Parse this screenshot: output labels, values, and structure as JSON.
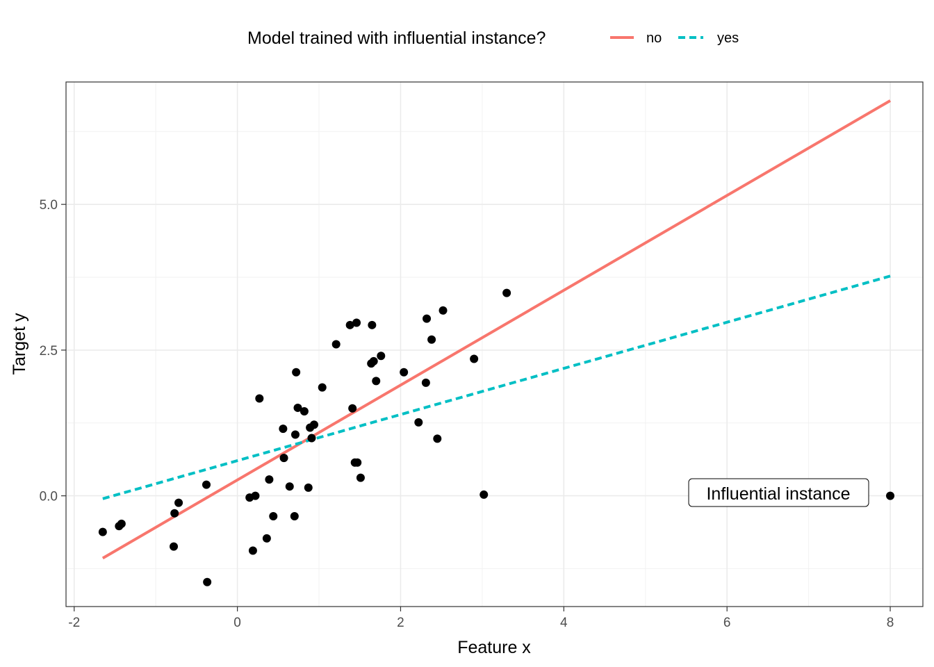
{
  "chart_data": {
    "type": "scatter",
    "xlabel": "Feature x",
    "ylabel": "Target y",
    "xlim": [
      -2.1,
      8.4
    ],
    "ylim": [
      -1.9,
      7.1
    ],
    "x_ticks": [
      -2,
      0,
      2,
      4,
      6,
      8
    ],
    "x_tick_labels": [
      "-2",
      "0",
      "2",
      "4",
      "6",
      "8"
    ],
    "y_ticks": [
      0,
      2.5,
      5
    ],
    "y_tick_labels": [
      "0.0",
      "2.5",
      "5.0"
    ],
    "grid": true,
    "legend": {
      "title": "Model trained with influential instance?",
      "position": "top",
      "entries": [
        {
          "label": "no",
          "color": "#F8766D",
          "dash": "solid"
        },
        {
          "label": "yes",
          "color": "#00BFC4",
          "dash": "dashed"
        }
      ]
    },
    "points": [
      {
        "x": -1.65,
        "y": -0.62
      },
      {
        "x": -1.45,
        "y": -0.52
      },
      {
        "x": -1.42,
        "y": -0.48
      },
      {
        "x": -0.78,
        "y": -0.87
      },
      {
        "x": -0.77,
        "y": -0.3
      },
      {
        "x": -0.72,
        "y": -0.12
      },
      {
        "x": -0.38,
        "y": 0.19
      },
      {
        "x": -0.37,
        "y": -1.48
      },
      {
        "x": 0.15,
        "y": -0.03
      },
      {
        "x": 0.19,
        "y": -0.94
      },
      {
        "x": 0.22,
        "y": 0.0
      },
      {
        "x": 0.27,
        "y": 1.67
      },
      {
        "x": 0.36,
        "y": -0.73
      },
      {
        "x": 0.39,
        "y": 0.28
      },
      {
        "x": 0.44,
        "y": -0.35
      },
      {
        "x": 0.56,
        "y": 1.15
      },
      {
        "x": 0.57,
        "y": 0.65
      },
      {
        "x": 0.64,
        "y": 0.16
      },
      {
        "x": 0.7,
        "y": -0.35
      },
      {
        "x": 0.71,
        "y": 1.05
      },
      {
        "x": 0.72,
        "y": 2.12
      },
      {
        "x": 0.74,
        "y": 1.51
      },
      {
        "x": 0.82,
        "y": 1.45
      },
      {
        "x": 0.87,
        "y": 0.14
      },
      {
        "x": 0.89,
        "y": 1.17
      },
      {
        "x": 0.91,
        "y": 0.99
      },
      {
        "x": 0.94,
        "y": 1.22
      },
      {
        "x": 1.04,
        "y": 1.86
      },
      {
        "x": 1.21,
        "y": 2.6
      },
      {
        "x": 1.38,
        "y": 2.93
      },
      {
        "x": 1.41,
        "y": 1.5
      },
      {
        "x": 1.44,
        "y": 0.57
      },
      {
        "x": 1.46,
        "y": 2.97
      },
      {
        "x": 1.47,
        "y": 0.57
      },
      {
        "x": 1.51,
        "y": 0.31
      },
      {
        "x": 1.64,
        "y": 2.27
      },
      {
        "x": 1.65,
        "y": 2.93
      },
      {
        "x": 1.67,
        "y": 2.31
      },
      {
        "x": 1.7,
        "y": 1.97
      },
      {
        "x": 1.76,
        "y": 2.4
      },
      {
        "x": 2.04,
        "y": 2.12
      },
      {
        "x": 2.22,
        "y": 1.26
      },
      {
        "x": 2.31,
        "y": 1.94
      },
      {
        "x": 2.32,
        "y": 3.04
      },
      {
        "x": 2.38,
        "y": 2.68
      },
      {
        "x": 2.45,
        "y": 0.98
      },
      {
        "x": 2.52,
        "y": 3.18
      },
      {
        "x": 2.9,
        "y": 2.35
      },
      {
        "x": 3.02,
        "y": 0.02
      },
      {
        "x": 3.3,
        "y": 3.48
      },
      {
        "x": 8.0,
        "y": 0.0
      }
    ],
    "series": [
      {
        "name": "no",
        "color": "#F8766D",
        "x": [
          -1.65,
          8.0
        ],
        "y": [
          -1.07,
          6.78
        ]
      },
      {
        "name": "yes",
        "color": "#00BFC4",
        "x": [
          -1.65,
          8.0
        ],
        "y": [
          -0.05,
          3.77
        ]
      }
    ],
    "annotations": [
      {
        "text": "Influential instance",
        "x": 6.7,
        "y": 0.05
      }
    ]
  }
}
